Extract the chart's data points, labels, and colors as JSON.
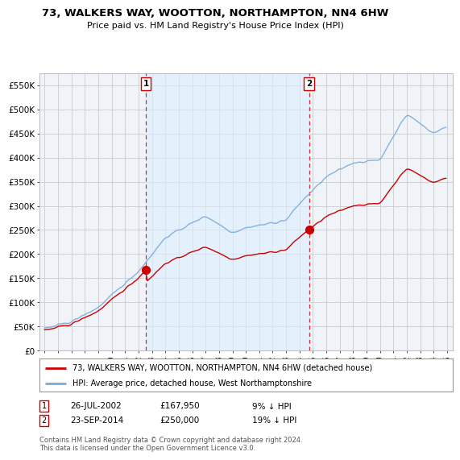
{
  "title": "73, WALKERS WAY, WOOTTON, NORTHAMPTON, NN4 6HW",
  "subtitle": "Price paid vs. HM Land Registry's House Price Index (HPI)",
  "ylabel_ticks": [
    "£0",
    "£50K",
    "£100K",
    "£150K",
    "£200K",
    "£250K",
    "£300K",
    "£350K",
    "£400K",
    "£450K",
    "£500K",
    "£550K"
  ],
  "ytick_values": [
    0,
    50000,
    100000,
    150000,
    200000,
    250000,
    300000,
    350000,
    400000,
    450000,
    500000,
    550000
  ],
  "ylim": [
    0,
    575000
  ],
  "legend_line1": "73, WALKERS WAY, WOOTTON, NORTHAMPTON, NN4 6HW (detached house)",
  "legend_line2": "HPI: Average price, detached house, West Northamptonshire",
  "sale1_date": "26-JUL-2002",
  "sale1_price": 167950,
  "sale1_hpi": "9% ↓ HPI",
  "sale2_date": "23-SEP-2014",
  "sale2_price": 250000,
  "sale2_hpi": "19% ↓ HPI",
  "footnote": "Contains HM Land Registry data © Crown copyright and database right 2024.\nThis data is licensed under the Open Government Licence v3.0.",
  "sale_color": "#cc0000",
  "hpi_color": "#7aaadd",
  "hpi_fill_color": "#ddeeff",
  "vline_color": "#cc0000",
  "background_color": "#ffffff",
  "plot_bg_color": "#f0f4f8",
  "grid_color": "#cccccc"
}
